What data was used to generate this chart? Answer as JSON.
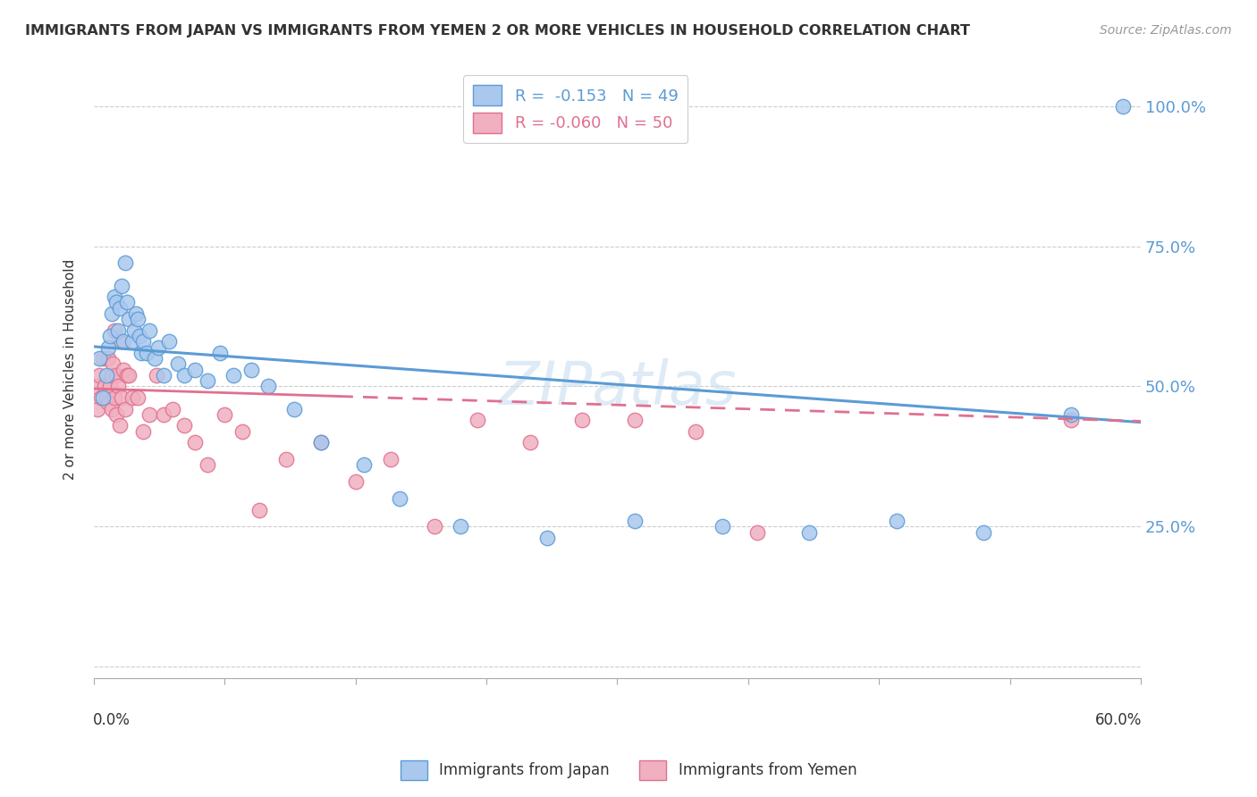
{
  "title": "IMMIGRANTS FROM JAPAN VS IMMIGRANTS FROM YEMEN 2 OR MORE VEHICLES IN HOUSEHOLD CORRELATION CHART",
  "source": "Source: ZipAtlas.com",
  "ylabel": "2 or more Vehicles in Household",
  "ytick_labels": [
    "",
    "25.0%",
    "50.0%",
    "75.0%",
    "100.0%"
  ],
  "ytick_values": [
    0.0,
    0.25,
    0.5,
    0.75,
    1.0
  ],
  "xlim": [
    0.0,
    0.6
  ],
  "ylim": [
    -0.02,
    1.08
  ],
  "legend_japan_R": "-0.153",
  "legend_japan_N": "49",
  "legend_yemen_R": "-0.060",
  "legend_yemen_N": "50",
  "japan_color": "#aac8ee",
  "japan_line_color": "#5b9bd5",
  "yemen_color": "#f0b0c0",
  "yemen_line_color": "#e07090",
  "watermark": "ZIPatlas",
  "japan_scatter_x": [
    0.003,
    0.005,
    0.007,
    0.008,
    0.009,
    0.01,
    0.012,
    0.013,
    0.014,
    0.015,
    0.016,
    0.017,
    0.018,
    0.019,
    0.02,
    0.022,
    0.023,
    0.024,
    0.025,
    0.026,
    0.027,
    0.028,
    0.03,
    0.032,
    0.035,
    0.037,
    0.04,
    0.043,
    0.048,
    0.052,
    0.058,
    0.065,
    0.072,
    0.08,
    0.09,
    0.1,
    0.115,
    0.13,
    0.155,
    0.175,
    0.21,
    0.26,
    0.31,
    0.36,
    0.41,
    0.46,
    0.51,
    0.56,
    0.59
  ],
  "japan_scatter_y": [
    0.55,
    0.48,
    0.52,
    0.57,
    0.59,
    0.63,
    0.66,
    0.65,
    0.6,
    0.64,
    0.68,
    0.58,
    0.72,
    0.65,
    0.62,
    0.58,
    0.6,
    0.63,
    0.62,
    0.59,
    0.56,
    0.58,
    0.56,
    0.6,
    0.55,
    0.57,
    0.52,
    0.58,
    0.54,
    0.52,
    0.53,
    0.51,
    0.56,
    0.52,
    0.53,
    0.5,
    0.46,
    0.4,
    0.36,
    0.3,
    0.25,
    0.23,
    0.26,
    0.25,
    0.24,
    0.26,
    0.24,
    0.45,
    1.0
  ],
  "yemen_scatter_x": [
    0.001,
    0.002,
    0.003,
    0.004,
    0.005,
    0.006,
    0.007,
    0.008,
    0.008,
    0.009,
    0.01,
    0.01,
    0.011,
    0.012,
    0.012,
    0.013,
    0.013,
    0.014,
    0.015,
    0.015,
    0.016,
    0.017,
    0.018,
    0.019,
    0.02,
    0.022,
    0.025,
    0.028,
    0.032,
    0.036,
    0.04,
    0.045,
    0.052,
    0.058,
    0.065,
    0.075,
    0.085,
    0.095,
    0.11,
    0.13,
    0.15,
    0.17,
    0.195,
    0.22,
    0.25,
    0.28,
    0.31,
    0.345,
    0.38,
    0.56
  ],
  "yemen_scatter_y": [
    0.5,
    0.46,
    0.52,
    0.48,
    0.55,
    0.5,
    0.48,
    0.55,
    0.47,
    0.5,
    0.46,
    0.52,
    0.54,
    0.48,
    0.6,
    0.52,
    0.45,
    0.5,
    0.58,
    0.43,
    0.48,
    0.53,
    0.46,
    0.52,
    0.52,
    0.48,
    0.48,
    0.42,
    0.45,
    0.52,
    0.45,
    0.46,
    0.43,
    0.4,
    0.36,
    0.45,
    0.42,
    0.28,
    0.37,
    0.4,
    0.33,
    0.37,
    0.25,
    0.44,
    0.4,
    0.44,
    0.44,
    0.42,
    0.24,
    0.44
  ],
  "japan_line_y0": 0.571,
  "japan_line_y1": 0.436,
  "yemen_line_y0": 0.496,
  "yemen_line_y1": 0.438
}
